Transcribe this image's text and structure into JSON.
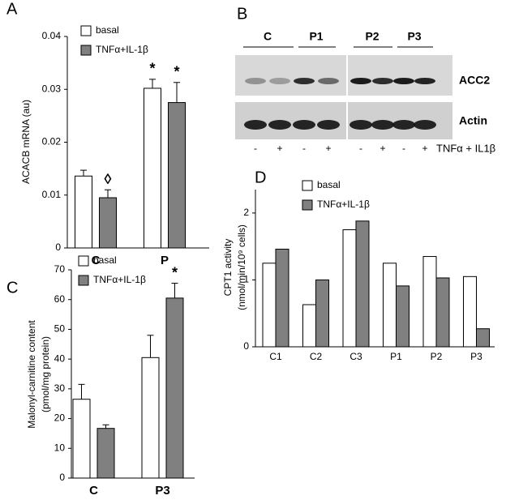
{
  "chart_data": [
    {
      "type": "bar",
      "panel": "A",
      "ylabel": [
        "ACACB mRNA (au)"
      ],
      "categories": [
        "C",
        "P"
      ],
      "ylim": [
        0,
        0.04
      ],
      "yticks": [
        0,
        0.01,
        0.02,
        0.03,
        0.04
      ],
      "series": [
        {
          "name": "basal",
          "color": "#ffffff",
          "values": [
            0.0136,
            0.0302
          ],
          "errors": [
            0.0011,
            0.0017
          ],
          "annotations": [
            null,
            "*"
          ]
        },
        {
          "name": "TNFα+IL-1β",
          "color": "#808080",
          "values": [
            0.0095,
            0.0275
          ],
          "errors": [
            0.0015,
            0.0038
          ],
          "annotations": [
            "◊",
            "*"
          ]
        }
      ]
    },
    {
      "type": "bar",
      "panel": "C",
      "ylabel": [
        "Malonyl-carnitine content",
        "(pmol/mg protein)"
      ],
      "categories": [
        "C",
        "P3"
      ],
      "ylim": [
        0,
        70
      ],
      "yticks": [
        0,
        10,
        20,
        30,
        40,
        50,
        60,
        70
      ],
      "series": [
        {
          "name": "basal",
          "color": "#ffffff",
          "values": [
            26.5,
            40.5
          ],
          "errors": [
            5,
            7.5
          ],
          "annotations": [
            null,
            null
          ]
        },
        {
          "name": "TNFα+IL-1β",
          "color": "#808080",
          "values": [
            16.7,
            60.5
          ],
          "errors": [
            1.2,
            5
          ],
          "annotations": [
            null,
            "*"
          ]
        }
      ]
    },
    {
      "type": "bar",
      "panel": "D",
      "ylabel": [
        "CPT1 activity",
        "(nmol/min/10⁹ cells)"
      ],
      "categories": [
        "C1",
        "C2",
        "C3",
        "P1",
        "P2",
        "P3"
      ],
      "ylim": [
        0,
        2.35
      ],
      "yticks": [
        0,
        1,
        2
      ],
      "series": [
        {
          "name": "basal",
          "color": "#ffffff",
          "values": [
            1.25,
            0.63,
            1.75,
            1.25,
            1.35,
            1.05
          ]
        },
        {
          "name": "TNFα+IL-1β",
          "color": "#808080",
          "values": [
            1.46,
            1.0,
            1.88,
            0.91,
            1.03,
            0.27
          ]
        }
      ]
    }
  ],
  "blot": {
    "panel": "B",
    "lanes": [
      "C",
      "P1",
      "P2",
      "P3"
    ],
    "bands": [
      "ACC2",
      "Actin"
    ],
    "treatment": [
      "-",
      "+",
      "-",
      "+",
      "-",
      "+",
      "-",
      "+"
    ],
    "treatment_label": "TNFα + IL1β"
  }
}
